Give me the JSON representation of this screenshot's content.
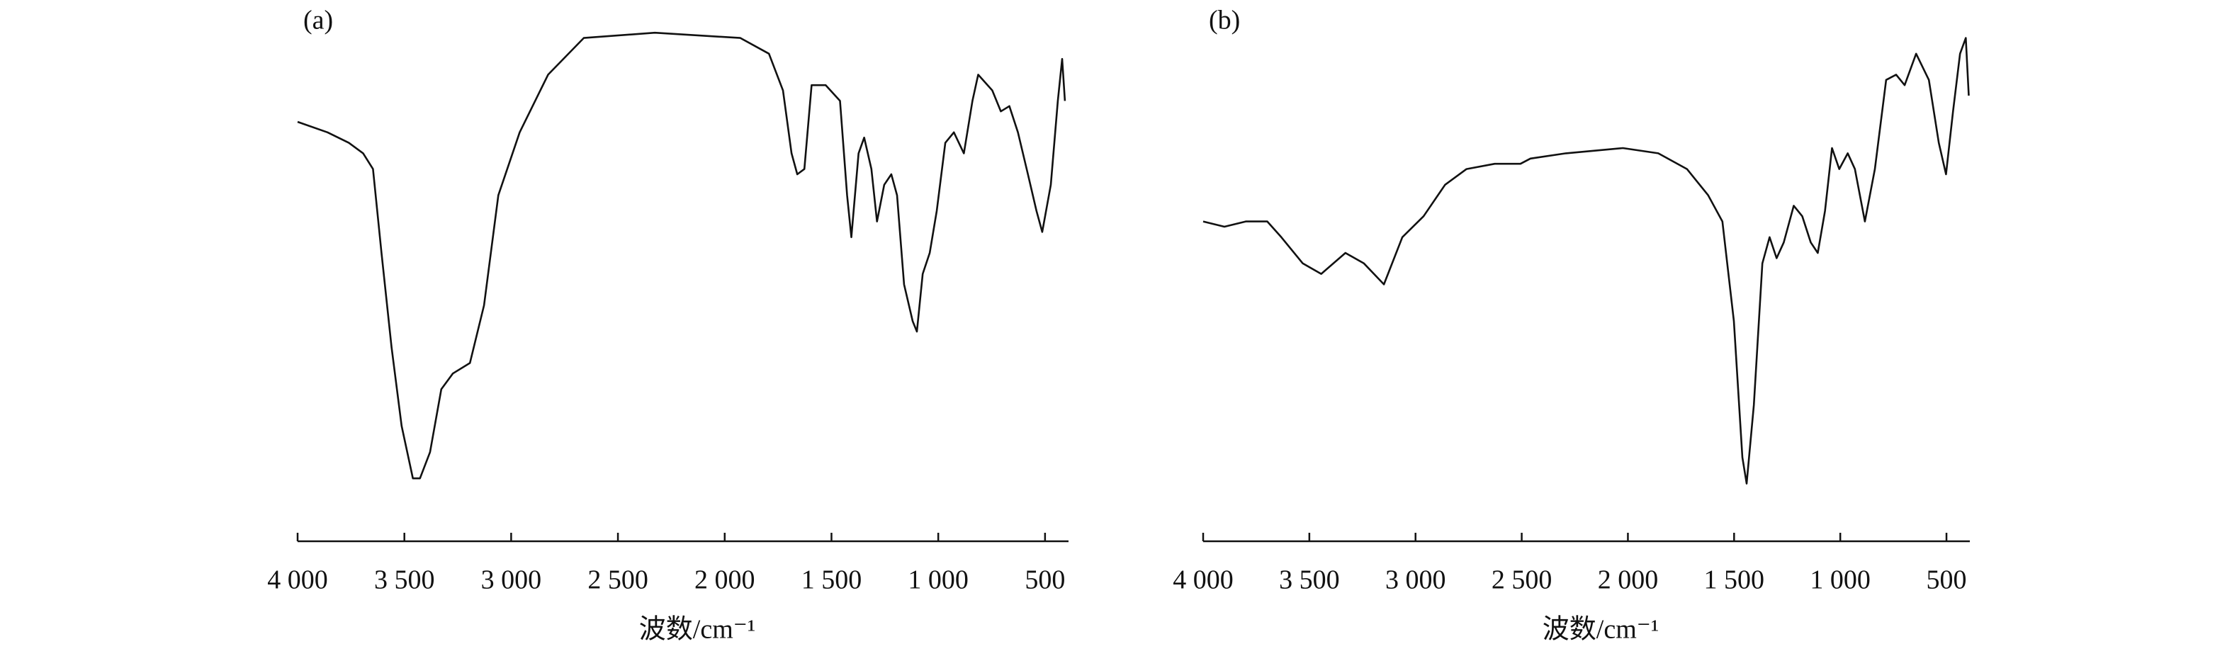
{
  "chart_data": [
    {
      "type": "line",
      "panel_label": "(a)",
      "x_label": "波数/cm⁻¹",
      "xlim": [
        4000,
        390
      ],
      "ylim": [
        0,
        100
      ],
      "xticks": [
        {
          "value": 4000,
          "label": "4 000"
        },
        {
          "value": 3500,
          "label": "3 500"
        },
        {
          "value": 3000,
          "label": "3 000"
        },
        {
          "value": 2500,
          "label": "2 500"
        },
        {
          "value": 2000,
          "label": "2 000"
        },
        {
          "value": 1500,
          "label": "1 500"
        },
        {
          "value": 1000,
          "label": "1 000"
        },
        500
      ],
      "series": [
        {
          "color": "#111111",
          "x": [
            4000,
            3860,
            3760,
            3693,
            3647,
            3607,
            3560,
            3513,
            3460,
            3427,
            3380,
            3327,
            3273,
            3193,
            3127,
            3060,
            2960,
            2827,
            2660,
            2327,
            1927,
            1793,
            1727,
            1687,
            1660,
            1627,
            1593,
            1527,
            1460,
            1427,
            1407,
            1373,
            1347,
            1313,
            1287,
            1253,
            1220,
            1193,
            1160,
            1120,
            1100,
            1073,
            1040,
            1007,
            967,
            927,
            880,
            840,
            813,
            747,
            707,
            667,
            627,
            580,
            540,
            513,
            473,
            440,
            420,
            407
          ],
          "values": [
            80,
            78,
            76,
            74,
            71,
            55,
            37,
            22,
            12,
            12,
            17,
            29,
            32,
            34,
            45,
            66,
            78,
            89,
            96,
            97,
            96,
            93,
            86,
            74,
            70,
            71,
            87,
            87,
            84,
            66,
            58,
            74,
            77,
            71,
            61,
            68,
            70,
            66,
            49,
            42,
            40,
            51,
            55,
            63,
            76,
            78,
            74,
            84,
            89,
            86,
            82,
            83,
            78,
            70,
            63,
            59,
            68,
            84,
            92,
            84
          ]
        }
      ]
    },
    {
      "type": "line",
      "panel_label": "(b)",
      "x_label": "波数/cm⁻¹",
      "xlim": [
        4000,
        390
      ],
      "ylim": [
        0,
        100
      ],
      "xticks": [
        {
          "value": 4000,
          "label": "4 000"
        },
        {
          "value": 3500,
          "label": "3 500"
        },
        {
          "value": 3000,
          "label": "3 000"
        },
        {
          "value": 2500,
          "label": "2 500"
        },
        {
          "value": 2000,
          "label": "2 000"
        },
        {
          "value": 1500,
          "label": "1 500"
        },
        {
          "value": 1000,
          "label": "1 000"
        },
        500
      ],
      "series": [
        {
          "color": "#111111",
          "x": [
            4000,
            3900,
            3799,
            3698,
            3632,
            3531,
            3444,
            3330,
            3243,
            3149,
            3062,
            2962,
            2861,
            2760,
            2627,
            2506,
            2459,
            2292,
            2024,
            1857,
            1722,
            1622,
            1555,
            1501,
            1461,
            1441,
            1407,
            1367,
            1333,
            1300,
            1266,
            1219,
            1179,
            1139,
            1106,
            1072,
            1039,
            1005,
            965,
            931,
            884,
            837,
            784,
            737,
            697,
            643,
            583,
            536,
            502,
            469,
            436,
            409,
            395
          ],
          "values": [
            61,
            60,
            61,
            61,
            58,
            53,
            51,
            55,
            53,
            49,
            58,
            62,
            68,
            71,
            72,
            72,
            73,
            74,
            75,
            74,
            71,
            66,
            61,
            42,
            16,
            11,
            26,
            53,
            58,
            54,
            57,
            64,
            62,
            57,
            55,
            63,
            75,
            71,
            74,
            71,
            61,
            71,
            88,
            89,
            87,
            93,
            88,
            76,
            70,
            82,
            93,
            96,
            85
          ]
        }
      ]
    }
  ]
}
